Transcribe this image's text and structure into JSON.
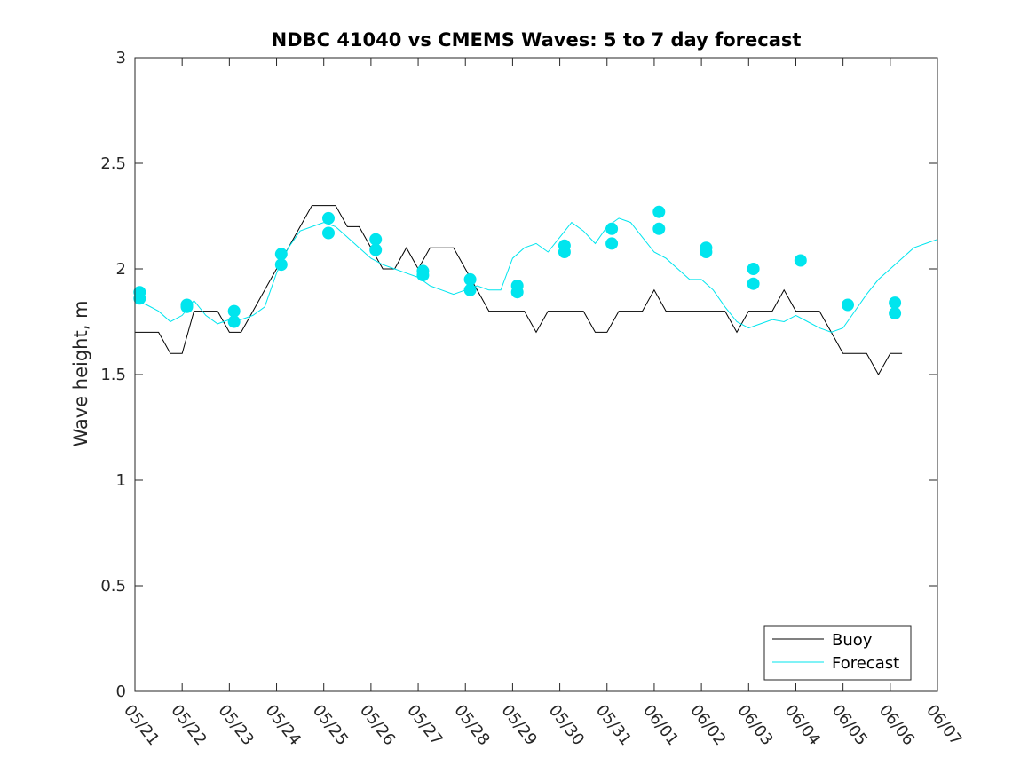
{
  "chart_data": {
    "type": "line",
    "title": "NDBC 41040 vs CMEMS Waves: 5 to 7 day forecast",
    "xlabel": "",
    "ylabel": "Wave height, m",
    "xlim": [
      "05/21",
      "06/07"
    ],
    "ylim": [
      0,
      3
    ],
    "yticks": [
      "0",
      "0.5",
      "1",
      "1.5",
      "2",
      "2.5",
      "3"
    ],
    "xticks": [
      "05/21",
      "05/22",
      "05/23",
      "05/24",
      "05/25",
      "05/26",
      "05/27",
      "05/28",
      "05/29",
      "05/30",
      "05/31",
      "06/01",
      "06/02",
      "06/03",
      "06/04",
      "06/05",
      "06/06",
      "06/07"
    ],
    "grid": false,
    "legend": {
      "location": "bottom-right",
      "entries": [
        {
          "name": "Buoy",
          "color": "#000000"
        },
        {
          "name": "Forecast",
          "color": "#00e5ee"
        }
      ]
    },
    "series": [
      {
        "name": "Buoy",
        "color": "#000000",
        "x_days": [
          0,
          0.25,
          0.5,
          0.75,
          1,
          1.25,
          1.5,
          1.75,
          2,
          2.25,
          2.5,
          2.75,
          3,
          3.25,
          3.5,
          3.75,
          4,
          4.25,
          4.5,
          4.75,
          5,
          5.25,
          5.5,
          5.75,
          6,
          6.25,
          6.5,
          6.75,
          7,
          7.25,
          7.5,
          7.75,
          8,
          8.25,
          8.5,
          8.75,
          9,
          9.25,
          9.5,
          9.75,
          10,
          10.25,
          10.5,
          10.75,
          11,
          11.25,
          11.5,
          11.75,
          12,
          12.25,
          12.5,
          12.75,
          13,
          13.25,
          13.5,
          13.75,
          14,
          14.25,
          14.5,
          14.75,
          15,
          15.25,
          15.5,
          15.75,
          16,
          16.25,
          16.5,
          16.75,
          17
        ],
        "values": [
          1.7,
          1.7,
          1.7,
          1.6,
          1.6,
          1.8,
          1.8,
          1.8,
          1.7,
          1.7,
          1.8,
          1.9,
          2.0,
          2.1,
          2.2,
          2.3,
          2.3,
          2.3,
          2.2,
          2.2,
          2.1,
          2.0,
          2.0,
          2.1,
          2.0,
          2.1,
          2.1,
          2.1,
          2.0,
          1.9,
          1.8,
          1.8,
          1.8,
          1.8,
          1.7,
          1.8,
          1.8,
          1.8,
          1.8,
          1.7,
          1.7,
          1.8,
          1.8,
          1.8,
          1.9,
          1.8,
          1.8,
          1.8,
          1.8,
          1.8,
          1.8,
          1.7,
          1.8,
          1.8,
          1.8,
          1.9,
          1.8,
          1.8,
          1.8,
          1.7,
          1.6,
          1.6,
          1.6,
          1.5,
          1.6,
          1.6,
          null,
          null,
          null
        ]
      },
      {
        "name": "Forecast",
        "color": "#00e5ee",
        "x_days": [
          0,
          0.25,
          0.5,
          0.75,
          1,
          1.25,
          1.5,
          1.75,
          2,
          2.25,
          2.5,
          2.75,
          3,
          3.25,
          3.5,
          3.75,
          4,
          4.25,
          4.5,
          4.75,
          5,
          5.25,
          5.5,
          5.75,
          6,
          6.25,
          6.5,
          6.75,
          7,
          7.25,
          7.5,
          7.75,
          8,
          8.25,
          8.5,
          8.75,
          9,
          9.25,
          9.5,
          9.75,
          10,
          10.25,
          10.5,
          10.75,
          11,
          11.25,
          11.5,
          11.75,
          12,
          12.25,
          12.5,
          12.75,
          13,
          13.25,
          13.5,
          13.75,
          14,
          14.25,
          14.5,
          14.75,
          15,
          15.25,
          15.5,
          15.75,
          16,
          16.25,
          16.5,
          16.75,
          17
        ],
        "values": [
          1.85,
          1.83,
          1.8,
          1.75,
          1.78,
          1.85,
          1.78,
          1.74,
          1.76,
          1.76,
          1.78,
          1.82,
          1.98,
          2.1,
          2.18,
          2.2,
          2.22,
          2.2,
          2.15,
          2.1,
          2.05,
          2.02,
          2.0,
          1.98,
          1.96,
          1.92,
          1.9,
          1.88,
          1.9,
          1.92,
          1.9,
          1.9,
          2.05,
          2.1,
          2.12,
          2.08,
          2.15,
          2.22,
          2.18,
          2.12,
          2.2,
          2.24,
          2.22,
          2.15,
          2.08,
          2.05,
          2.0,
          1.95,
          1.95,
          1.9,
          1.82,
          1.75,
          1.72,
          1.74,
          1.76,
          1.75,
          1.78,
          1.75,
          1.72,
          1.7,
          1.72,
          1.8,
          1.88,
          1.95,
          2.0,
          2.05,
          2.1,
          2.12,
          2.14
        ]
      }
    ],
    "forecast_markers": {
      "name": "Forecast",
      "x_days": [
        0.1,
        0.1,
        1.1,
        1.1,
        2.1,
        2.1,
        3.1,
        3.1,
        4.1,
        4.1,
        5.1,
        5.1,
        6.1,
        6.1,
        7.1,
        7.1,
        8.1,
        8.1,
        9.1,
        9.1,
        10.1,
        10.1,
        11.1,
        11.1,
        12.1,
        12.1,
        13.1,
        13.1,
        14.1,
        15.1,
        16.1,
        16.1
      ],
      "values": [
        1.89,
        1.86,
        1.83,
        1.82,
        1.8,
        1.75,
        2.07,
        2.02,
        2.24,
        2.17,
        2.14,
        2.09,
        1.99,
        1.97,
        1.95,
        1.9,
        1.92,
        1.89,
        2.11,
        2.08,
        2.19,
        2.12,
        2.27,
        2.19,
        2.1,
        2.08,
        2.0,
        1.93,
        2.04,
        1.83,
        1.84,
        1.79
      ]
    }
  }
}
